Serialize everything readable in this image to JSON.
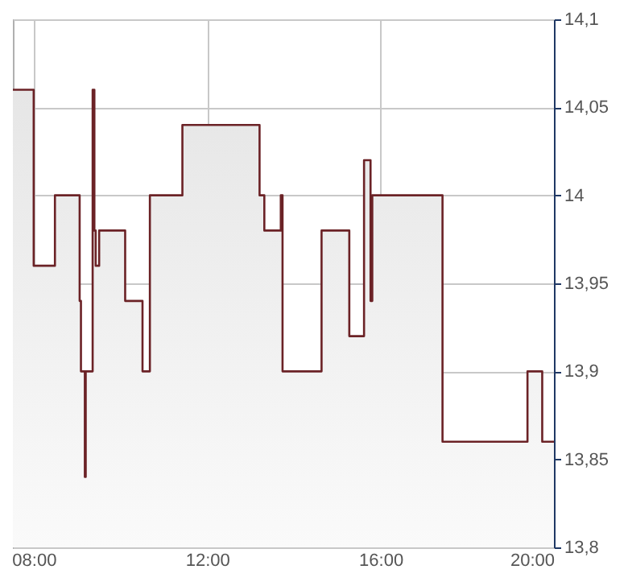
{
  "chart_data": {
    "type": "area",
    "x": [
      7.52,
      8.0,
      8.0,
      8.49,
      8.49,
      9.06,
      9.06,
      9.09,
      9.09,
      9.18,
      9.18,
      9.2,
      9.2,
      9.36,
      9.36,
      9.4,
      9.4,
      9.43,
      9.43,
      9.51,
      9.51,
      10.11,
      10.11,
      10.51,
      10.51,
      10.68,
      10.68,
      11.43,
      11.43,
      13.21,
      13.21,
      13.32,
      13.32,
      13.7,
      13.7,
      13.74,
      13.74,
      14.64,
      14.64,
      15.28,
      15.28,
      15.62,
      15.62,
      15.77,
      15.77,
      15.81,
      15.81,
      17.43,
      17.43,
      19.39,
      19.39,
      19.73,
      19.73,
      20.0
    ],
    "series": [
      {
        "color": "#6b2226",
        "values": [
          14.06,
          14.06,
          13.96,
          13.96,
          14.0,
          14.0,
          13.94,
          13.94,
          13.9,
          13.9,
          13.84,
          13.84,
          13.9,
          13.9,
          14.06,
          14.06,
          13.98,
          13.98,
          13.96,
          13.96,
          13.98,
          13.98,
          13.94,
          13.94,
          13.9,
          13.9,
          14.0,
          14.0,
          14.04,
          14.04,
          14.0,
          14.0,
          13.98,
          13.98,
          14.0,
          14.0,
          13.9,
          13.9,
          13.98,
          13.98,
          13.92,
          13.92,
          14.02,
          14.02,
          13.94,
          13.94,
          14.0,
          14.0,
          13.86,
          13.86,
          13.9,
          13.9,
          13.86,
          13.86
        ]
      }
    ],
    "xlim": [
      7.52,
      20
    ],
    "xticks": [
      {
        "value": 8,
        "label": "08:00"
      },
      {
        "value": 12,
        "label": "12:00"
      },
      {
        "value": 16,
        "label": "16:00"
      },
      {
        "value": 20,
        "label": "20:00"
      }
    ],
    "ylim": [
      13.8,
      14.1
    ],
    "yticks": [
      {
        "value": 13.8,
        "label": "13,8"
      },
      {
        "value": 13.85,
        "label": "13,85"
      },
      {
        "value": 13.9,
        "label": "13,9"
      },
      {
        "value": 13.95,
        "label": "13,95"
      },
      14,
      {
        "value": 14.05,
        "label": "14,05"
      },
      {
        "value": 14.1,
        "label": "14,1"
      }
    ],
    "grid": true
  }
}
